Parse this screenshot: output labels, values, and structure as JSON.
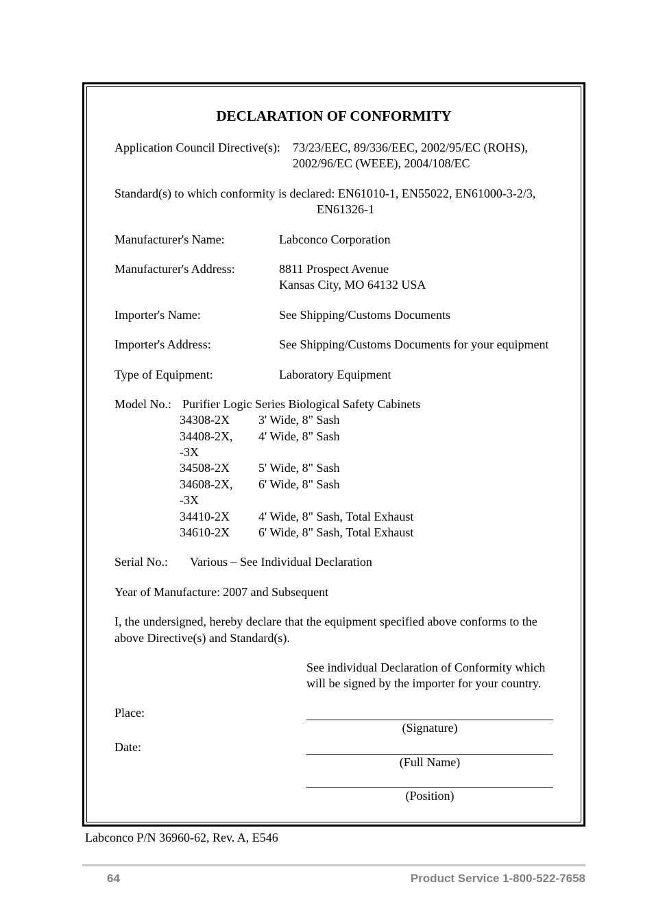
{
  "title": "DECLARATION OF CONFORMITY",
  "directives": {
    "label": "Application Council Directive(s):",
    "value": "73/23/EEC, 89/336/EEC, 2002/95/EC (ROHS), 2002/96/EC (WEEE), 2004/108/EC"
  },
  "standards": {
    "line1": "Standard(s) to which conformity is declared: EN61010-1, EN55022, EN61000-3-2/3,",
    "line2": "EN61326-1"
  },
  "manu_name": {
    "label": "Manufacturer's Name:",
    "value": "Labconco Corporation"
  },
  "manu_addr": {
    "label": "Manufacturer's Address:",
    "value_l1": "8811 Prospect Avenue",
    "value_l2": "Kansas City, MO 64132 USA"
  },
  "imp_name": {
    "label": "Importer's Name:",
    "value": "See Shipping/Customs Documents"
  },
  "imp_addr": {
    "label": "Importer's Address:",
    "value": "See Shipping/Customs Documents for your equipment"
  },
  "equip_type": {
    "label": "Type of Equipment:",
    "value": "Laboratory Equipment"
  },
  "model": {
    "label": "Model No.:",
    "header": "Purifier Logic Series Biological Safety Cabinets",
    "rows": [
      {
        "code": "34308-2X",
        "desc": "3' Wide, 8\" Sash"
      },
      {
        "code": "34408-2X, -3X",
        "desc": "4' Wide, 8\" Sash"
      },
      {
        "code": "34508-2X",
        "desc": "5' Wide, 8\" Sash"
      },
      {
        "code": "34608-2X, -3X",
        "desc": "6' Wide, 8\" Sash"
      },
      {
        "code": "34410-2X",
        "desc": "4' Wide, 8\" Sash, Total Exhaust"
      },
      {
        "code": "34610-2X",
        "desc": "6' Wide, 8\" Sash, Total Exhaust"
      }
    ]
  },
  "serial": {
    "label": "Serial No.:",
    "value": "Various – See Individual Declaration"
  },
  "year": {
    "label": "Year of Manufacture:",
    "value": "2007 and Subsequent"
  },
  "declare": "I, the undersigned, hereby declare that the equipment specified above conforms to the above Directive(s) and Standard(s).",
  "sig_note": "See individual Declaration of Conformity which will be signed by the importer for your country.",
  "place_label": "Place:",
  "date_label": "Date:",
  "sig_cap": "(Signature)",
  "name_cap": "(Full Name)",
  "pos_cap": "(Position)",
  "pn": "Labconco P/N 36960-62, Rev. A, E546",
  "footer": {
    "page": "64",
    "service": "Product Service 1-800-522-7658"
  }
}
